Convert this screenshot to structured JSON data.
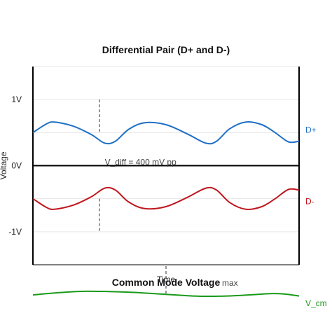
{
  "chart_data": [
    {
      "type": "line",
      "title": "Differential Pair (D+ and D-)",
      "xlabel": "Time",
      "ylabel": "Voltage",
      "ylim": [
        -1.5,
        1.5
      ],
      "yticks": [
        {
          "value": 1,
          "label": "1V"
        },
        {
          "value": 0,
          "label": "0V"
        },
        {
          "value": -1,
          "label": "-1V"
        }
      ],
      "grid": true,
      "series": [
        {
          "name": "D+",
          "color": "#1f6fc5",
          "baseline": 0.5,
          "amplitude": 0.2,
          "points": [
            [
              0,
              0.5
            ],
            [
              0.05,
              0.63
            ],
            [
              0.08,
              0.66
            ],
            [
              0.15,
              0.6
            ],
            [
              0.22,
              0.47
            ],
            [
              0.27,
              0.34
            ],
            [
              0.31,
              0.37
            ],
            [
              0.36,
              0.55
            ],
            [
              0.42,
              0.65
            ],
            [
              0.5,
              0.62
            ],
            [
              0.58,
              0.48
            ],
            [
              0.65,
              0.34
            ],
            [
              0.69,
              0.37
            ],
            [
              0.74,
              0.56
            ],
            [
              0.8,
              0.66
            ],
            [
              0.86,
              0.62
            ],
            [
              0.91,
              0.5
            ],
            [
              0.96,
              0.36
            ],
            [
              1,
              0.37
            ]
          ]
        },
        {
          "name": "D-",
          "color": "#c0171f",
          "baseline": -0.5,
          "amplitude": 0.2,
          "points": [
            [
              0,
              -0.5
            ],
            [
              0.05,
              -0.63
            ],
            [
              0.08,
              -0.66
            ],
            [
              0.15,
              -0.6
            ],
            [
              0.22,
              -0.47
            ],
            [
              0.27,
              -0.34
            ],
            [
              0.31,
              -0.37
            ],
            [
              0.36,
              -0.55
            ],
            [
              0.42,
              -0.65
            ],
            [
              0.5,
              -0.62
            ],
            [
              0.58,
              -0.48
            ],
            [
              0.65,
              -0.34
            ],
            [
              0.69,
              -0.37
            ],
            [
              0.74,
              -0.56
            ],
            [
              0.8,
              -0.66
            ],
            [
              0.86,
              -0.62
            ],
            [
              0.91,
              -0.5
            ],
            [
              0.96,
              -0.36
            ],
            [
              1,
              -0.37
            ]
          ]
        }
      ],
      "annotations": [
        {
          "text": "V_diff = 400 mV pp",
          "x": 0.27,
          "y": 0.0
        }
      ],
      "markers": [
        {
          "x": 0.25,
          "y1": 1.0,
          "y2": 0.5
        },
        {
          "x": 0.25,
          "y1": -0.5,
          "y2": -1.0
        }
      ]
    },
    {
      "type": "line",
      "title": "Common Mode Voltage",
      "annotation": "max",
      "series": [
        {
          "name": "V_cm",
          "color": "#1a9a1a",
          "points": [
            [
              0,
              0.0
            ],
            [
              0.1,
              0.2
            ],
            [
              0.2,
              0.32
            ],
            [
              0.35,
              0.25
            ],
            [
              0.5,
              0.05
            ],
            [
              0.6,
              -0.1
            ],
            [
              0.7,
              -0.12
            ],
            [
              0.8,
              -0.02
            ],
            [
              0.9,
              0.12
            ],
            [
              0.95,
              0.06
            ],
            [
              1,
              -0.1
            ]
          ]
        }
      ],
      "markers": [
        {
          "x": 0.5
        }
      ]
    }
  ]
}
